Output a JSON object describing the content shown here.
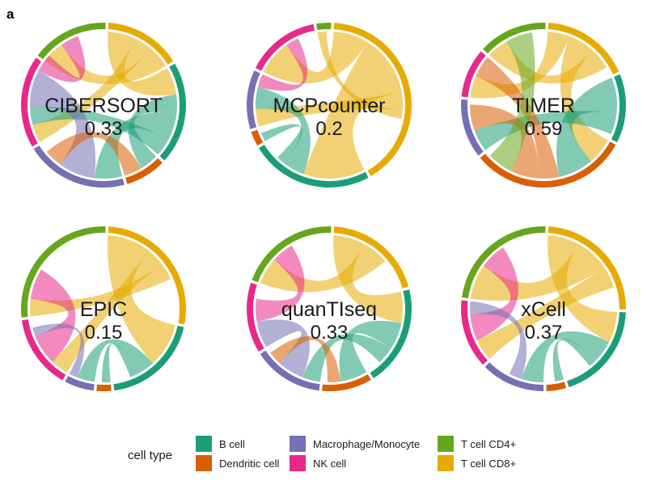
{
  "panel_label": "a",
  "chart_data": {
    "type": "chord",
    "order": [
      "T cell CD8+",
      "B cell",
      "Dendritic cell",
      "Macrophage/Monocyte",
      "NK cell",
      "T cell CD4+"
    ],
    "colors": {
      "B cell": "#1b9e77",
      "Dendritic cell": "#d95f02",
      "Macrophage/Monocyte": "#7570b3",
      "NK cell": "#e7298a",
      "T cell CD4+": "#66a61e",
      "T cell CD8+": "#e6ab02"
    },
    "panels": [
      {
        "name": "CIBERSORT",
        "score": "0.33",
        "sectors": {
          "T cell CD8+": 15,
          "B cell": 20,
          "Dendritic cell": 8,
          "Macrophage/Monocyte": 20,
          "NK cell": 18,
          "T cell CD4+": 15
        },
        "links": [
          [
            "T cell CD8+",
            "B cell",
            6
          ],
          [
            "T cell CD8+",
            "NK cell",
            4
          ],
          [
            "T cell CD8+",
            "T cell CD4+",
            5
          ],
          [
            "B cell",
            "Dendritic cell",
            4
          ],
          [
            "B cell",
            "Macrophage/Monocyte",
            6
          ],
          [
            "B cell",
            "NK cell",
            4
          ],
          [
            "Macrophage/Monocyte",
            "NK cell",
            8
          ],
          [
            "Dendritic cell",
            "Macrophage/Monocyte",
            4
          ],
          [
            "NK cell",
            "T cell CD4+",
            4
          ]
        ]
      },
      {
        "name": "MCPcounter",
        "score": "0.2",
        "sectors": {
          "T cell CD8+": 42,
          "B cell": 25,
          "Dendritic cell": 3,
          "Macrophage/Monocyte": 12,
          "NK cell": 15,
          "T cell CD4+": 3
        },
        "links": [
          [
            "T cell CD8+",
            "NK cell",
            8
          ],
          [
            "T cell CD8+",
            "B cell",
            14
          ],
          [
            "T cell CD8+",
            "Macrophage/Monocyte",
            4
          ],
          [
            "T cell CD8+",
            "T cell CD4+",
            2
          ],
          [
            "B cell",
            "Macrophage/Monocyte",
            5
          ],
          [
            "B cell",
            "Dendritic cell",
            2
          ],
          [
            "NK cell",
            "Macrophage/Monocyte",
            3
          ]
        ]
      },
      {
        "name": "TIMER",
        "score": "0.59",
        "sectors": {
          "T cell CD8+": 18,
          "B cell": 14,
          "Dendritic cell": 32,
          "Macrophage/Monocyte": 12,
          "NK cell": 10,
          "T cell CD4+": 14
        },
        "links": [
          [
            "T cell CD8+",
            "NK cell",
            5
          ],
          [
            "T cell CD8+",
            "Dendritic cell",
            6
          ],
          [
            "T cell CD8+",
            "T cell CD4+",
            5
          ],
          [
            "B cell",
            "Dendritic cell",
            8
          ],
          [
            "B cell",
            "Macrophage/Monocyte",
            5
          ],
          [
            "Dendritic cell",
            "NK cell",
            5
          ],
          [
            "Dendritic cell",
            "Macrophage/Monocyte",
            6
          ],
          [
            "T cell CD4+",
            "Dendritic cell",
            6
          ]
        ]
      },
      {
        "name": "EPIC",
        "score": "0.15",
        "sectors": {
          "T cell CD8+": 28,
          "B cell": 20,
          "Dendritic cell": 3,
          "Macrophage/Monocyte": 6,
          "NK cell": 15,
          "T cell CD4+": 28
        },
        "links": [
          [
            "T cell CD8+",
            "B cell",
            10
          ],
          [
            "T cell CD8+",
            "NK cell",
            4
          ],
          [
            "T cell CD8+",
            "T cell CD4+",
            4
          ],
          [
            "B cell",
            "Macrophage/Monocyte",
            4
          ],
          [
            "B cell",
            "Dendritic cell",
            2
          ],
          [
            "NK cell",
            "T cell CD4+",
            7
          ],
          [
            "Macrophage/Monocyte",
            "NK cell",
            2
          ]
        ]
      },
      {
        "name": "quanTIseq",
        "score": "0.33",
        "sectors": {
          "T cell CD8+": 20,
          "B cell": 20,
          "Dendritic cell": 10,
          "Macrophage/Monocyte": 14,
          "NK cell": 14,
          "T cell CD4+": 20
        },
        "links": [
          [
            "T cell CD8+",
            "B cell",
            7
          ],
          [
            "T cell CD8+",
            "T cell CD4+",
            6
          ],
          [
            "B cell",
            "Dendritic cell",
            6
          ],
          [
            "B cell",
            "Macrophage/Monocyte",
            4
          ],
          [
            "Macrophage/Monocyte",
            "NK cell",
            6
          ],
          [
            "NK cell",
            "T cell CD4+",
            5
          ],
          [
            "Dendritic cell",
            "Macrophage/Monocyte",
            3
          ]
        ]
      },
      {
        "name": "xCell",
        "score": "0.37",
        "sectors": {
          "T cell CD8+": 25,
          "B cell": 20,
          "Dendritic cell": 4,
          "Macrophage/Monocyte": 13,
          "NK cell": 14,
          "T cell CD4+": 24
        },
        "links": [
          [
            "T cell CD8+",
            "B cell",
            7
          ],
          [
            "T cell CD8+",
            "T cell CD4+",
            8
          ],
          [
            "T cell CD8+",
            "NK cell",
            5
          ],
          [
            "B cell",
            "Macrophage/Monocyte",
            5
          ],
          [
            "B cell",
            "Dendritic cell",
            2
          ],
          [
            "NK cell",
            "T cell CD4+",
            6
          ],
          [
            "Macrophage/Monocyte",
            "NK cell",
            3
          ]
        ]
      }
    ]
  },
  "legend": {
    "title": "cell type",
    "items": [
      {
        "label": "B cell",
        "color": "#1b9e77"
      },
      {
        "label": "Dendritic cell",
        "color": "#d95f02"
      },
      {
        "label": "Macrophage/Monocyte",
        "color": "#7570b3"
      },
      {
        "label": "NK cell",
        "color": "#e7298a"
      },
      {
        "label": "T cell CD4+",
        "color": "#66a61e"
      },
      {
        "label": "T cell CD8+",
        "color": "#e6ab02"
      }
    ]
  }
}
